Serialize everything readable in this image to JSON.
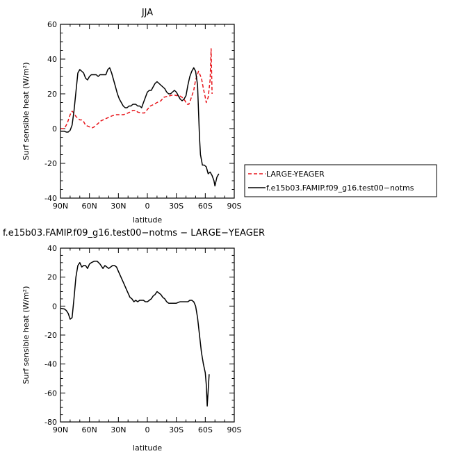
{
  "chart_data": [
    {
      "type": "line",
      "title": "JJA",
      "xlabel": "latitude",
      "ylabel": "Surf sensible heat (W/m²)",
      "xlim": [
        90,
        -90
      ],
      "ylim": [
        -40,
        60
      ],
      "xticks": [
        90,
        60,
        30,
        0,
        -30,
        -60,
        -90
      ],
      "xtick_labels": [
        "90N",
        "60N",
        "30N",
        "0",
        "30S",
        "60S",
        "90S"
      ],
      "yticks": [
        -40,
        -20,
        0,
        20,
        40,
        60
      ],
      "ytick_labels": [
        "-40",
        "-20",
        "0",
        "20",
        "40",
        "60"
      ],
      "legend": "outside-right",
      "series": [
        {
          "name": "LARGE-YEAGER",
          "color": "#e8141a",
          "dash": "dashed",
          "points": [
            [
              90,
              0
            ],
            [
              86,
              0
            ],
            [
              83,
              3
            ],
            [
              80,
              8
            ],
            [
              78,
              10
            ],
            [
              76,
              9
            ],
            [
              74,
              7
            ],
            [
              72,
              6
            ],
            [
              70,
              5
            ],
            [
              68,
              5
            ],
            [
              66,
              4
            ],
            [
              64,
              2
            ],
            [
              62,
              1.5
            ],
            [
              60,
              1
            ],
            [
              57,
              0.5
            ],
            [
              55,
              1
            ],
            [
              52,
              2.5
            ],
            [
              48,
              4.5
            ],
            [
              44,
              5.5
            ],
            [
              40,
              6.5
            ],
            [
              36,
              7.5
            ],
            [
              32,
              8
            ],
            [
              28,
              8
            ],
            [
              25,
              8
            ],
            [
              22,
              8.5
            ],
            [
              20,
              9
            ],
            [
              18,
              9.5
            ],
            [
              15,
              10.5
            ],
            [
              12,
              10.5
            ],
            [
              10,
              9.5
            ],
            [
              6,
              9
            ],
            [
              3,
              9
            ],
            [
              0,
              11
            ],
            [
              -3,
              13
            ],
            [
              -7,
              14
            ],
            [
              -10,
              15
            ],
            [
              -14,
              16
            ],
            [
              -17,
              18
            ],
            [
              -20,
              18.5
            ],
            [
              -24,
              19
            ],
            [
              -27,
              19.5
            ],
            [
              -30,
              19
            ],
            [
              -33,
              19
            ],
            [
              -36,
              18
            ],
            [
              -39,
              16
            ],
            [
              -41,
              14
            ],
            [
              -43,
              14
            ],
            [
              -45,
              17
            ],
            [
              -48,
              22
            ],
            [
              -50,
              28
            ],
            [
              -53,
              33
            ],
            [
              -56,
              29
            ],
            [
              -58,
              23
            ],
            [
              -60,
              18
            ],
            [
              -61,
              15
            ],
            [
              -63,
              18
            ],
            [
              -65,
              28
            ],
            [
              -66,
              46
            ],
            [
              -67,
              20
            ]
          ]
        },
        {
          "name": "f.e15b03.FAMIP.f09_g16.test00−notms",
          "color": "#000000",
          "dash": "solid",
          "points": [
            [
              90,
              -1.5
            ],
            [
              86,
              -1.5
            ],
            [
              84,
              -2
            ],
            [
              82,
              -2
            ],
            [
              80,
              -1
            ],
            [
              78,
              2
            ],
            [
              76,
              10
            ],
            [
              74,
              21
            ],
            [
              72,
              32
            ],
            [
              70,
              34
            ],
            [
              68,
              33
            ],
            [
              66,
              32
            ],
            [
              64,
              29
            ],
            [
              62,
              28
            ],
            [
              60,
              30
            ],
            [
              58,
              31
            ],
            [
              56,
              31
            ],
            [
              53,
              31
            ],
            [
              51,
              30
            ],
            [
              49,
              31
            ],
            [
              47,
              31
            ],
            [
              45,
              31
            ],
            [
              43,
              31
            ],
            [
              41,
              34
            ],
            [
              39,
              35
            ],
            [
              37,
              32
            ],
            [
              35,
              28
            ],
            [
              33,
              24
            ],
            [
              31,
              20
            ],
            [
              29,
              17
            ],
            [
              27,
              15
            ],
            [
              25,
              13
            ],
            [
              23,
              12
            ],
            [
              21,
              12
            ],
            [
              19,
              13
            ],
            [
              17,
              13
            ],
            [
              15,
              14
            ],
            [
              12,
              14
            ],
            [
              10,
              13
            ],
            [
              8,
              13
            ],
            [
              6,
              12
            ],
            [
              4,
              15
            ],
            [
              2,
              18
            ],
            [
              0,
              21
            ],
            [
              -2,
              22
            ],
            [
              -4,
              22
            ],
            [
              -6,
              24
            ],
            [
              -8,
              26
            ],
            [
              -10,
              27
            ],
            [
              -12,
              26
            ],
            [
              -14,
              25
            ],
            [
              -16,
              24
            ],
            [
              -18,
              23
            ],
            [
              -20,
              21
            ],
            [
              -22,
              20
            ],
            [
              -24,
              20
            ],
            [
              -26,
              21
            ],
            [
              -28,
              22
            ],
            [
              -30,
              21
            ],
            [
              -32,
              19
            ],
            [
              -34,
              17
            ],
            [
              -36,
              16
            ],
            [
              -38,
              17
            ],
            [
              -40,
              19
            ],
            [
              -42,
              25
            ],
            [
              -44,
              30
            ],
            [
              -46,
              33
            ],
            [
              -48,
              35
            ],
            [
              -50,
              33
            ],
            [
              -52,
              25
            ],
            [
              -53,
              10
            ],
            [
              -54,
              -5
            ],
            [
              -55,
              -15
            ],
            [
              -56,
              -18
            ],
            [
              -57,
              -21
            ],
            [
              -59,
              -21
            ],
            [
              -61,
              -22
            ],
            [
              -63,
              -26
            ],
            [
              -65,
              -25
            ],
            [
              -67,
              -27
            ],
            [
              -69,
              -30
            ],
            [
              -70,
              -33
            ],
            [
              -72,
              -28
            ],
            [
              -74,
              -26
            ]
          ]
        }
      ]
    },
    {
      "type": "line",
      "title": "f.e15b03.FAMIP.f09_g16.test00−notms − LARGE−YEAGER",
      "xlabel": "latitude",
      "ylabel": "Surf sensible heat (W/m²)",
      "xlim": [
        90,
        -90
      ],
      "ylim": [
        -80,
        40
      ],
      "xticks": [
        90,
        60,
        30,
        0,
        -30,
        -60,
        -90
      ],
      "xtick_labels": [
        "90N",
        "60N",
        "30N",
        "0",
        "30S",
        "60S",
        "90S"
      ],
      "yticks": [
        -80,
        -60,
        -40,
        -20,
        0,
        20,
        40
      ],
      "ytick_labels": [
        "-80",
        "-60",
        "-40",
        "-20",
        "0",
        "20",
        "40"
      ],
      "series": [
        {
          "color": "#000000",
          "dash": "solid",
          "points": [
            [
              90,
              -1.5
            ],
            [
              86,
              -2
            ],
            [
              84,
              -3
            ],
            [
              82,
              -5
            ],
            [
              80,
              -9
            ],
            [
              78,
              -8
            ],
            [
              76,
              5
            ],
            [
              74,
              20
            ],
            [
              72,
              28
            ],
            [
              70,
              30
            ],
            [
              68,
              27
            ],
            [
              66,
              28
            ],
            [
              64,
              28
            ],
            [
              62,
              26
            ],
            [
              60,
              29
            ],
            [
              58,
              30
            ],
            [
              55,
              31
            ],
            [
              52,
              31
            ],
            [
              49,
              29
            ],
            [
              46,
              26
            ],
            [
              44,
              28
            ],
            [
              42,
              27
            ],
            [
              40,
              26
            ],
            [
              38,
              27
            ],
            [
              36,
              28
            ],
            [
              34,
              28
            ],
            [
              32,
              27
            ],
            [
              30,
              24
            ],
            [
              28,
              21
            ],
            [
              26,
              18
            ],
            [
              24,
              15
            ],
            [
              22,
              12
            ],
            [
              20,
              9
            ],
            [
              18,
              6
            ],
            [
              16,
              5
            ],
            [
              14,
              3
            ],
            [
              12,
              4
            ],
            [
              10,
              3
            ],
            [
              8,
              4
            ],
            [
              6,
              4
            ],
            [
              4,
              4
            ],
            [
              2,
              3
            ],
            [
              0,
              3
            ],
            [
              -2,
              4
            ],
            [
              -4,
              5
            ],
            [
              -6,
              7
            ],
            [
              -8,
              8
            ],
            [
              -10,
              10
            ],
            [
              -12,
              9
            ],
            [
              -14,
              8
            ],
            [
              -16,
              6
            ],
            [
              -18,
              5
            ],
            [
              -20,
              3
            ],
            [
              -22,
              2
            ],
            [
              -24,
              2
            ],
            [
              -26,
              2
            ],
            [
              -28,
              2
            ],
            [
              -30,
              2
            ],
            [
              -32,
              2.5
            ],
            [
              -34,
              3
            ],
            [
              -36,
              3
            ],
            [
              -38,
              3
            ],
            [
              -40,
              3
            ],
            [
              -42,
              3
            ],
            [
              -44,
              4
            ],
            [
              -46,
              4
            ],
            [
              -48,
              3
            ],
            [
              -50,
              0
            ],
            [
              -52,
              -8
            ],
            [
              -54,
              -20
            ],
            [
              -56,
              -32
            ],
            [
              -58,
              -40
            ],
            [
              -60,
              -46
            ],
            [
              -61,
              -54
            ],
            [
              -62,
              -69
            ],
            [
              -63,
              -58
            ],
            [
              -64,
              -47
            ]
          ]
        }
      ]
    }
  ]
}
